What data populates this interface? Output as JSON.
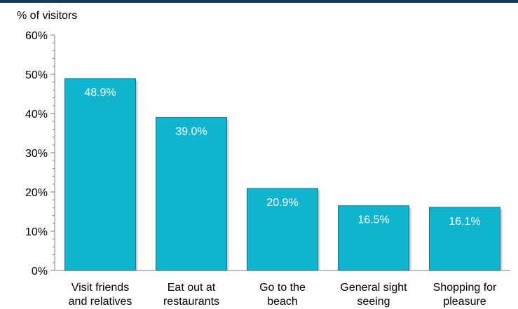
{
  "chart_data": {
    "type": "bar",
    "ylabel": "% of visitors",
    "categories": [
      [
        "Visit friends",
        "and relatives"
      ],
      [
        "Eat out at",
        "restaurants"
      ],
      [
        "Go to the",
        "beach"
      ],
      [
        "General sight",
        "seeing"
      ],
      [
        "Shopping for",
        "pleasure"
      ]
    ],
    "values": [
      48.9,
      39.0,
      20.9,
      16.5,
      16.1
    ],
    "value_labels": [
      "48.9%",
      "39.0%",
      "20.9%",
      "16.5%",
      "16.1%"
    ],
    "ylim": [
      0,
      60
    ],
    "yticks": [
      0,
      10,
      20,
      30,
      40,
      50,
      60
    ],
    "ytick_labels": [
      "0%",
      "10%",
      "20%",
      "30%",
      "40%",
      "50%",
      "60%"
    ],
    "grid": false,
    "legend": "none"
  },
  "colors": {
    "bar_fill": "#0fb5cf",
    "bar_edge": "#1e6f80",
    "axis": "#7f7f7f",
    "top_rule": "#17375e",
    "value_text": "#ffffff"
  }
}
